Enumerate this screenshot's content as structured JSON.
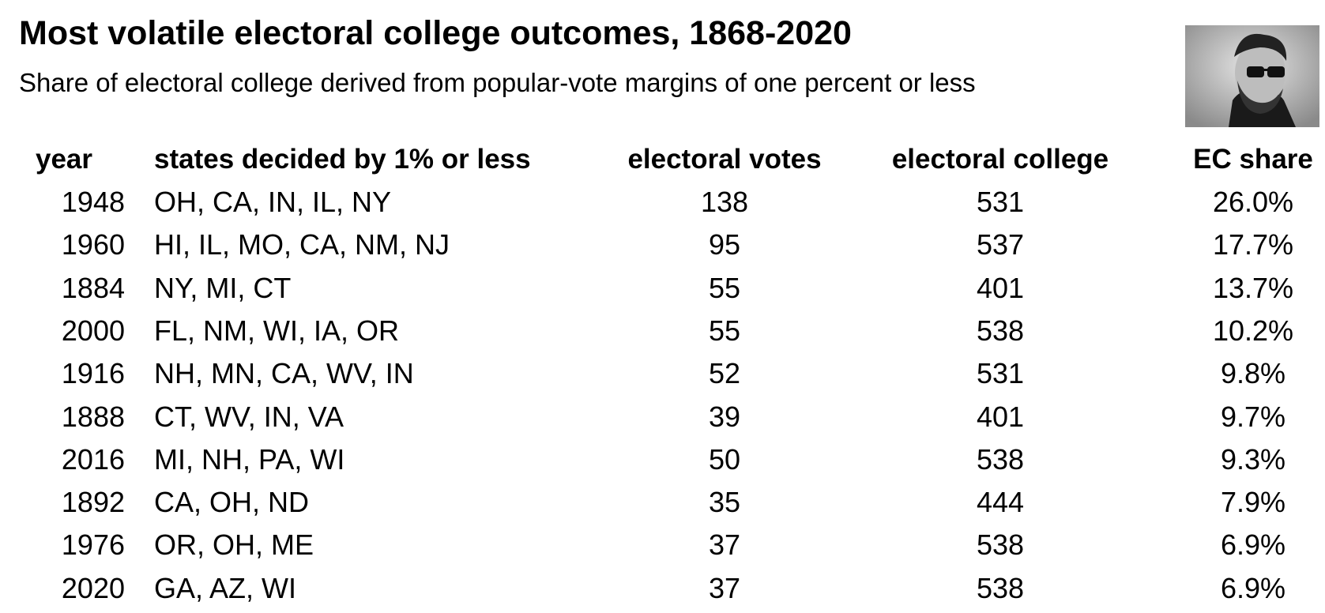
{
  "header": {
    "title": "Most volatile electoral college outcomes, 1868-2020",
    "subtitle": "Share of electoral college derived from popular-vote margins of one percent or less"
  },
  "table": {
    "columns": [
      "year",
      "states decided by 1% or less",
      "electoral votes",
      "electoral college",
      "EC share"
    ],
    "rows": [
      [
        1948,
        "OH, CA, IN, IL, NY",
        138,
        531,
        "26.0%"
      ],
      [
        1960,
        "HI, IL, MO, CA, NM, NJ",
        95,
        537,
        "17.7%"
      ],
      [
        1884,
        "NY, MI, CT",
        55,
        401,
        "13.7%"
      ],
      [
        2000,
        "FL, NM, WI, IA, OR",
        55,
        538,
        "10.2%"
      ],
      [
        1916,
        "NH, MN, CA, WV, IN",
        52,
        531,
        "9.8%"
      ],
      [
        1888,
        "CT, WV, IN, VA",
        39,
        401,
        "9.7%"
      ],
      [
        2016,
        "MI, NH, PA, WI",
        50,
        538,
        "9.3%"
      ],
      [
        1892,
        "CA, OH, ND",
        35,
        444,
        "7.9%"
      ],
      [
        1976,
        "OR, OH, ME",
        37,
        538,
        "6.9%"
      ],
      [
        2020,
        "GA, AZ, WI",
        37,
        538,
        "6.9%"
      ]
    ]
  }
}
